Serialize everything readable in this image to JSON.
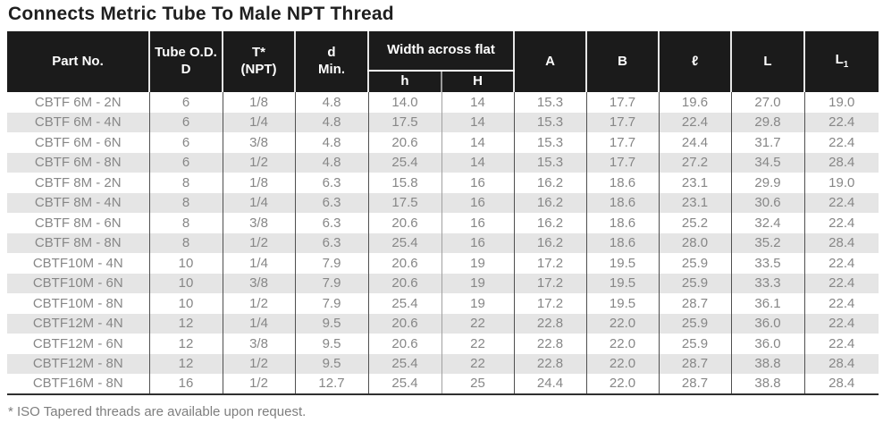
{
  "page": {
    "title": "Connects Metric Tube To Male NPT Thread",
    "footnote": "* ISO Tapered threads are available upon request."
  },
  "table": {
    "headers": {
      "part_no": "Part No.",
      "tube_od_line1": "Tube O.D.",
      "tube_od_line2": "D",
      "t_line1": "T*",
      "t_line2": "(NPT)",
      "d_line1": "d",
      "d_line2": "Min.",
      "width_across_flat": "Width across flat",
      "h_small": "h",
      "h_big": "H",
      "a": "A",
      "b": "B",
      "ell": "ℓ",
      "l": "L",
      "l1_main": "L",
      "l1_sub": "1"
    },
    "rows": [
      [
        "CBTF 6M - 2N",
        "6",
        "1/8",
        "4.8",
        "14.0",
        "14",
        "15.3",
        "17.7",
        "19.6",
        "27.0",
        "19.0"
      ],
      [
        "CBTF 6M - 4N",
        "6",
        "1/4",
        "4.8",
        "17.5",
        "14",
        "15.3",
        "17.7",
        "22.4",
        "29.8",
        "22.4"
      ],
      [
        "CBTF 6M - 6N",
        "6",
        "3/8",
        "4.8",
        "20.6",
        "14",
        "15.3",
        "17.7",
        "24.4",
        "31.7",
        "22.4"
      ],
      [
        "CBTF 6M - 8N",
        "6",
        "1/2",
        "4.8",
        "25.4",
        "14",
        "15.3",
        "17.7",
        "27.2",
        "34.5",
        "28.4"
      ],
      [
        "CBTF 8M - 2N",
        "8",
        "1/8",
        "6.3",
        "15.8",
        "16",
        "16.2",
        "18.6",
        "23.1",
        "29.9",
        "19.0"
      ],
      [
        "CBTF 8M - 4N",
        "8",
        "1/4",
        "6.3",
        "17.5",
        "16",
        "16.2",
        "18.6",
        "23.1",
        "30.6",
        "22.4"
      ],
      [
        "CBTF 8M - 6N",
        "8",
        "3/8",
        "6.3",
        "20.6",
        "16",
        "16.2",
        "18.6",
        "25.2",
        "32.4",
        "22.4"
      ],
      [
        "CBTF 8M - 8N",
        "8",
        "1/2",
        "6.3",
        "25.4",
        "16",
        "16.2",
        "18.6",
        "28.0",
        "35.2",
        "28.4"
      ],
      [
        "CBTF10M - 4N",
        "10",
        "1/4",
        "7.9",
        "20.6",
        "19",
        "17.2",
        "19.5",
        "25.9",
        "33.5",
        "22.4"
      ],
      [
        "CBTF10M - 6N",
        "10",
        "3/8",
        "7.9",
        "20.6",
        "19",
        "17.2",
        "19.5",
        "25.9",
        "33.3",
        "22.4"
      ],
      [
        "CBTF10M - 8N",
        "10",
        "1/2",
        "7.9",
        "25.4",
        "19",
        "17.2",
        "19.5",
        "28.7",
        "36.1",
        "22.4"
      ],
      [
        "CBTF12M - 4N",
        "12",
        "1/4",
        "9.5",
        "20.6",
        "22",
        "22.8",
        "22.0",
        "25.9",
        "36.0",
        "22.4"
      ],
      [
        "CBTF12M - 6N",
        "12",
        "3/8",
        "9.5",
        "20.6",
        "22",
        "22.8",
        "22.0",
        "25.9",
        "36.0",
        "22.4"
      ],
      [
        "CBTF12M - 8N",
        "12",
        "1/2",
        "9.5",
        "25.4",
        "22",
        "22.8",
        "22.0",
        "28.7",
        "38.8",
        "28.4"
      ],
      [
        "CBTF16M - 8N",
        "16",
        "1/2",
        "12.7",
        "25.4",
        "25",
        "24.4",
        "22.0",
        "28.7",
        "38.8",
        "28.4"
      ]
    ]
  },
  "colors": {
    "header_bg": "#1b1b1b",
    "header_text": "#ffffff",
    "title_text": "#1f1f1f",
    "data_text": "#878787",
    "row_alt_bg": "#e5e5e5",
    "divider_dark": "#4f4f4f",
    "divider_light": "#a0a0a0",
    "table_bottom_border": "#303030",
    "footnote_text": "#7e7e7e"
  }
}
